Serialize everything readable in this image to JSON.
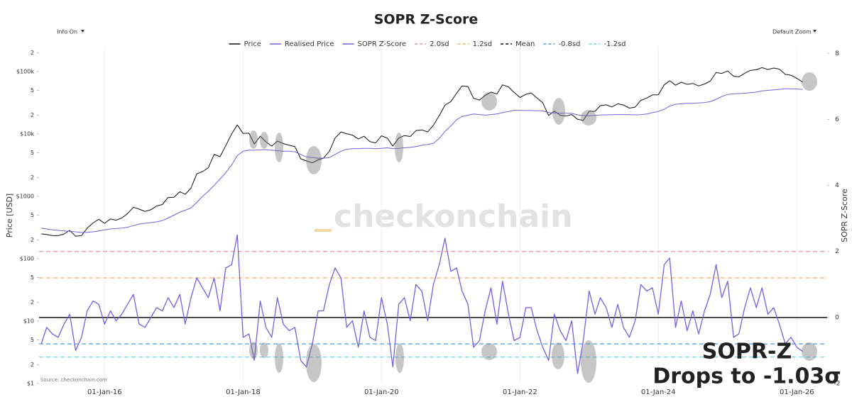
{
  "chart_data": {
    "type": "line",
    "title": "SOPR Z-Score",
    "controls": {
      "info": "Info On",
      "zoom": "Default Zoom"
    },
    "ylabel": "Price [USD]",
    "y2label": "SOPR Z-Score",
    "source": "Source: checkonchain.com",
    "watermark": "checkonchain",
    "annotation": [
      "SOPR-Z",
      "Drops to -1.03σ"
    ],
    "ylog": true,
    "grid": "x",
    "legend": "top",
    "xlim": [
      "2015-01-20",
      "2026-06-10"
    ],
    "xticks": [
      {
        "value": "2016-01-01",
        "label": "01-Jan-16"
      },
      {
        "value": "2018-01-01",
        "label": "01-Jan-18"
      },
      {
        "value": "2020-01-01",
        "label": "01-Jan-20"
      },
      {
        "value": "2022-01-01",
        "label": "01-Jan-22"
      },
      {
        "value": "2024-01-01",
        "label": "01-Jan-24"
      },
      {
        "value": "2026-01-01",
        "label": "01-Jan-26"
      }
    ],
    "ylim": [
      1,
      250000
    ],
    "yticks": [
      {
        "value": 1,
        "label": "$1"
      },
      2,
      5,
      {
        "value": 10,
        "label": "$10"
      },
      {
        "value": 20,
        "label": "2"
      },
      {
        "value": 50,
        "label": "5"
      },
      {
        "value": 100,
        "label": "$100"
      },
      {
        "value": 200,
        "label": "2"
      },
      {
        "value": 500,
        "label": "5"
      },
      {
        "value": 1000,
        "label": "$1000"
      },
      {
        "value": 2000,
        "label": "2"
      },
      {
        "value": 5000,
        "label": "5"
      },
      {
        "value": 10000,
        "label": "$10k"
      },
      {
        "value": 20000,
        "label": "2"
      },
      {
        "value": 50000,
        "label": "5"
      },
      {
        "value": 100000,
        "label": "$100k"
      },
      {
        "value": 200000,
        "label": "2"
      }
    ],
    "y2lim": [
      -2,
      8.2
    ],
    "y2ticks": [
      -2,
      0,
      2,
      4,
      6,
      8
    ],
    "x": [
      "2015-02-01",
      "2015-03-01",
      "2015-04-01",
      "2015-05-01",
      "2015-06-01",
      "2015-07-01",
      "2015-08-01",
      "2015-09-01",
      "2015-10-01",
      "2015-11-01",
      "2015-12-01",
      "2016-01-01",
      "2016-02-01",
      "2016-03-01",
      "2016-04-01",
      "2016-05-01",
      "2016-06-01",
      "2016-07-01",
      "2016-08-01",
      "2016-09-01",
      "2016-10-01",
      "2016-11-01",
      "2016-12-01",
      "2017-01-01",
      "2017-02-01",
      "2017-03-01",
      "2017-04-01",
      "2017-05-01",
      "2017-06-01",
      "2017-07-01",
      "2017-08-01",
      "2017-09-01",
      "2017-10-01",
      "2017-11-01",
      "2017-12-01",
      "2018-01-01",
      "2018-02-01",
      "2018-03-01",
      "2018-04-01",
      "2018-05-01",
      "2018-06-01",
      "2018-07-01",
      "2018-08-01",
      "2018-09-01",
      "2018-10-01",
      "2018-11-01",
      "2018-12-01",
      "2019-01-01",
      "2019-02-01",
      "2019-03-01",
      "2019-04-01",
      "2019-05-01",
      "2019-06-01",
      "2019-07-01",
      "2019-08-01",
      "2019-09-01",
      "2019-10-01",
      "2019-11-01",
      "2019-12-01",
      "2020-01-01",
      "2020-02-01",
      "2020-03-01",
      "2020-04-01",
      "2020-05-01",
      "2020-06-01",
      "2020-07-01",
      "2020-08-01",
      "2020-09-01",
      "2020-10-01",
      "2020-11-01",
      "2020-12-01",
      "2021-01-01",
      "2021-02-01",
      "2021-03-01",
      "2021-04-01",
      "2021-05-01",
      "2021-06-01",
      "2021-07-01",
      "2021-08-01",
      "2021-09-01",
      "2021-10-01",
      "2021-11-01",
      "2021-12-01",
      "2022-01-01",
      "2022-02-01",
      "2022-03-01",
      "2022-04-01",
      "2022-05-01",
      "2022-06-01",
      "2022-07-01",
      "2022-08-01",
      "2022-09-01",
      "2022-10-01",
      "2022-11-01",
      "2022-12-01",
      "2023-01-01",
      "2023-02-01",
      "2023-03-01",
      "2023-04-01",
      "2023-05-01",
      "2023-06-01",
      "2023-07-01",
      "2023-08-01",
      "2023-09-01",
      "2023-10-01",
      "2023-11-01",
      "2023-12-01",
      "2024-01-01",
      "2024-02-01",
      "2024-03-01",
      "2024-04-01",
      "2024-05-01",
      "2024-06-01",
      "2024-07-01",
      "2024-08-01",
      "2024-09-01",
      "2024-10-01",
      "2024-11-01",
      "2024-12-01",
      "2025-01-01",
      "2025-02-01",
      "2025-03-01",
      "2025-04-01",
      "2025-05-01",
      "2025-06-01",
      "2025-07-01",
      "2025-08-01",
      "2025-09-01",
      "2025-10-01",
      "2025-11-01",
      "2025-12-01",
      "2026-01-01",
      "2026-02-01"
    ],
    "series": [
      {
        "name": "Price",
        "color": "#111111",
        "axis": "y",
        "values": [
          250,
          245,
          235,
          235,
          250,
          285,
          230,
          235,
          310,
          375,
          430,
          370,
          435,
          415,
          450,
          530,
          670,
          625,
          575,
          610,
          700,
          740,
          960,
          970,
          1190,
          1080,
          1350,
          2300,
          2500,
          2870,
          4700,
          4340,
          6470,
          10000,
          14000,
          10200,
          10300,
          6900,
          9200,
          7500,
          6400,
          7700,
          7000,
          6600,
          6300,
          4000,
          3700,
          3450,
          3850,
          4100,
          5300,
          8600,
          10800,
          10100,
          9600,
          8300,
          9200,
          7550,
          7200,
          9350,
          8600,
          6400,
          8600,
          9450,
          9140,
          11300,
          11650,
          10780,
          13800,
          19700,
          29000,
          33100,
          45200,
          58900,
          57700,
          37300,
          35000,
          41500,
          47100,
          43800,
          61300,
          57000,
          46300,
          38500,
          43200,
          45500,
          37700,
          31800,
          19800,
          23300,
          20000,
          19400,
          20500,
          17200,
          16500,
          23100,
          23100,
          28500,
          29300,
          27200,
          30500,
          29200,
          26000,
          27000,
          34600,
          37700,
          42300,
          42600,
          61200,
          71300,
          60600,
          67500,
          62700,
          64600,
          59000,
          63300,
          70200,
          96400,
          93400,
          102400,
          84400,
          82500,
          94200,
          104600,
          107100,
          115800,
          108300,
          114000,
          109600,
          90400,
          87500,
          78000,
          68000
        ]
      },
      {
        "name": "Realised Price",
        "color": "#7b5ce0",
        "axis": "y",
        "values": [
          310,
          300,
          290,
          285,
          280,
          275,
          270,
          265,
          265,
          270,
          280,
          290,
          300,
          305,
          310,
          320,
          340,
          360,
          370,
          380,
          390,
          410,
          450,
          500,
          560,
          600,
          650,
          800,
          1000,
          1200,
          1500,
          1900,
          2400,
          3200,
          4500,
          5300,
          5500,
          5500,
          5600,
          5600,
          5500,
          5400,
          5300,
          5300,
          5200,
          4700,
          4300,
          4200,
          4100,
          4100,
          4200,
          4700,
          5300,
          5700,
          5800,
          5800,
          5900,
          5900,
          5800,
          5900,
          6000,
          5800,
          5900,
          6000,
          6100,
          6300,
          6600,
          6800,
          7100,
          8500,
          11000,
          13500,
          17000,
          19000,
          20000,
          21000,
          20500,
          20000,
          20500,
          21000,
          22000,
          23000,
          24000,
          24000,
          23800,
          23800,
          23600,
          23500,
          22000,
          21800,
          21600,
          21500,
          21400,
          20300,
          19800,
          19700,
          19900,
          20100,
          20300,
          20400,
          20500,
          20500,
          20400,
          20300,
          20400,
          21000,
          22000,
          23000,
          25000,
          28000,
          30000,
          30500,
          31000,
          31000,
          31500,
          32000,
          33000,
          36000,
          40000,
          43000,
          44000,
          44500,
          45000,
          46000,
          47000,
          49000,
          50000,
          51000,
          52000,
          53000,
          53000,
          52500,
          52000
        ]
      },
      {
        "name": "SOPR Z-Score",
        "color": "#7b5ce0",
        "axis": "y2",
        "values": [
          -0.8,
          -0.3,
          -0.5,
          -0.6,
          -0.2,
          0.1,
          -1.0,
          -0.6,
          0.2,
          0.5,
          0.4,
          -0.2,
          0.2,
          -0.1,
          0.1,
          0.4,
          0.7,
          -0.2,
          -0.3,
          0.0,
          0.3,
          0.2,
          0.6,
          0.3,
          0.7,
          -0.2,
          0.6,
          1.2,
          0.9,
          0.6,
          1.2,
          0.2,
          1.5,
          1.6,
          2.5,
          -0.6,
          -0.5,
          -1.3,
          0.5,
          -0.3,
          -0.6,
          0.6,
          -0.2,
          -0.4,
          -0.3,
          -1.3,
          -1.5,
          -0.8,
          0.2,
          0.2,
          1.0,
          1.5,
          1.2,
          -0.3,
          -0.1,
          -0.9,
          0.2,
          -0.6,
          -0.7,
          0.6,
          -0.2,
          -1.5,
          0.4,
          0.6,
          -0.1,
          1.0,
          0.8,
          -0.1,
          1.0,
          1.6,
          2.4,
          1.4,
          1.5,
          0.8,
          0.4,
          -0.9,
          -0.7,
          0.2,
          0.9,
          -0.2,
          1.1,
          0.1,
          -0.7,
          -0.6,
          0.3,
          0.3,
          -0.4,
          -0.9,
          -1.3,
          0.1,
          -0.4,
          -0.7,
          -0.1,
          -1.7,
          -0.7,
          0.8,
          0.1,
          0.6,
          0.3,
          -0.3,
          0.4,
          -0.3,
          -0.6,
          -0.1,
          1.0,
          0.8,
          0.9,
          0.1,
          1.6,
          1.8,
          -0.3,
          0.5,
          -0.4,
          0.2,
          -0.5,
          0.2,
          0.7,
          1.6,
          0.6,
          1.1,
          -0.6,
          -0.5,
          0.3,
          0.9,
          0.3,
          0.9,
          0.1,
          0.3,
          -0.2,
          -0.8,
          -0.6,
          -0.9,
          -1.03
        ]
      }
    ],
    "reference_lines": [
      {
        "name": "2.0sd",
        "value": 2.0,
        "color": "#e08fb0",
        "axis": "y2",
        "dash": true
      },
      {
        "name": "1.2sd",
        "value": 1.2,
        "color": "#f0b25a",
        "axis": "y2",
        "dash": true
      },
      {
        "name": "Mean",
        "value": 0,
        "color": "#111111",
        "axis": "y2",
        "dash": false
      },
      {
        "name": "-0.8sd",
        "value": -0.8,
        "color": "#4a9fe0",
        "axis": "y2",
        "dash": true
      },
      {
        "name": "-1.2sd",
        "value": -1.2,
        "color": "#6fd3ea",
        "axis": "y2",
        "dash": true
      }
    ]
  }
}
